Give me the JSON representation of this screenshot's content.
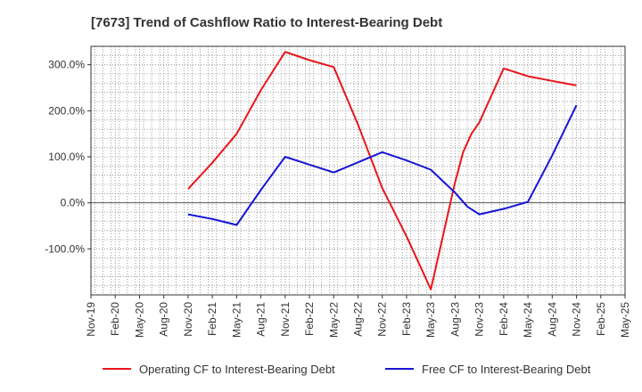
{
  "chart_data": {
    "type": "line",
    "title": "[7673]  Trend of Cashflow Ratio to Interest-Bearing Debt",
    "xlabel": "",
    "ylabel": "",
    "categories": [
      "Nov-19",
      "Feb-20",
      "May-20",
      "Aug-20",
      "Nov-20",
      "Feb-21",
      "May-21",
      "Aug-21",
      "Nov-21",
      "Feb-22",
      "May-22",
      "Aug-22",
      "Nov-22",
      "Feb-23",
      "May-23",
      "Aug-23",
      "Nov-23",
      "Feb-24",
      "May-24",
      "Aug-24",
      "Nov-24",
      "Feb-25",
      "May-25"
    ],
    "ylim": [
      -200,
      340
    ],
    "yticks": [
      300,
      200,
      100,
      0,
      -100
    ],
    "ytick_labels": [
      "300.0%",
      "200.0%",
      "100.0%",
      "0.0%",
      "-100.0%"
    ],
    "grid": true,
    "legend_position": "bottom",
    "series": [
      {
        "name": "Operating CF to Interest-Bearing Debt",
        "color": "#e8161b",
        "points": [
          {
            "x": 4,
            "y": 30
          },
          {
            "x": 5,
            "y": 87
          },
          {
            "x": 6,
            "y": 150
          },
          {
            "x": 7,
            "y": 245
          },
          {
            "x": 8,
            "y": 328
          },
          {
            "x": 9,
            "y": 310
          },
          {
            "x": 10,
            "y": 295
          },
          {
            "x": 11,
            "y": 170
          },
          {
            "x": 12,
            "y": 32
          },
          {
            "x": 13,
            "y": -73
          },
          {
            "x": 14,
            "y": -188
          },
          {
            "x": 15,
            "y": 45
          },
          {
            "x": 15.33,
            "y": 110
          },
          {
            "x": 15.67,
            "y": 150
          },
          {
            "x": 16,
            "y": 175
          },
          {
            "x": 17,
            "y": 292
          },
          {
            "x": 18,
            "y": 275
          },
          {
            "x": 19,
            "y": 265
          },
          {
            "x": 20,
            "y": 255
          }
        ]
      },
      {
        "name": "Free CF to Interest-Bearing Debt",
        "color": "#1515d6",
        "points": [
          {
            "x": 4,
            "y": -25
          },
          {
            "x": 5,
            "y": -35
          },
          {
            "x": 6,
            "y": -48
          },
          {
            "x": 7,
            "y": 28
          },
          {
            "x": 8,
            "y": 100
          },
          {
            "x": 9,
            "y": 83
          },
          {
            "x": 10,
            "y": 66
          },
          {
            "x": 11,
            "y": 88
          },
          {
            "x": 12,
            "y": 110
          },
          {
            "x": 13,
            "y": 92
          },
          {
            "x": 14,
            "y": 72
          },
          {
            "x": 15,
            "y": 22
          },
          {
            "x": 15.5,
            "y": -8
          },
          {
            "x": 16,
            "y": -25
          },
          {
            "x": 17,
            "y": -13
          },
          {
            "x": 18,
            "y": 2
          },
          {
            "x": 19,
            "y": 103
          },
          {
            "x": 20,
            "y": 212
          }
        ]
      }
    ]
  }
}
